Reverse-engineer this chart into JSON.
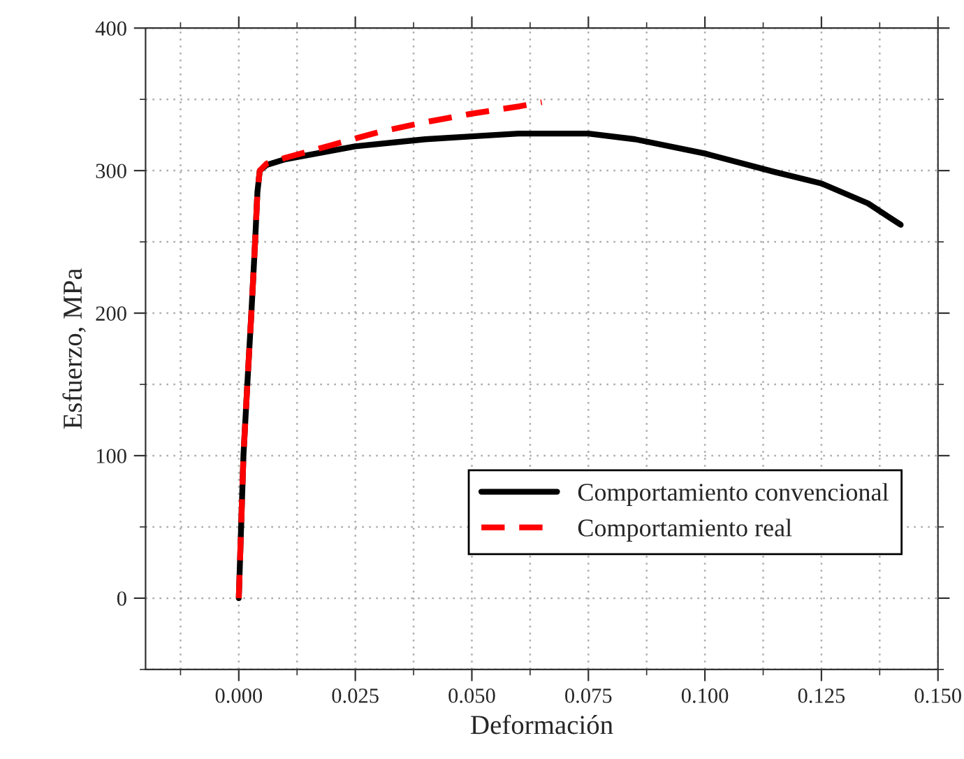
{
  "chart_data": {
    "type": "line",
    "xlabel": "Deformación",
    "ylabel": "Esfuerzo, MPa",
    "xlim": [
      -0.02,
      0.15
    ],
    "xticks": [
      {
        "value": 0,
        "label": "0.000"
      },
      {
        "value": 0.025,
        "label": "0.025"
      },
      {
        "value": 0.05,
        "label": "0.050"
      },
      {
        "value": 0.075,
        "label": "0.075"
      },
      {
        "value": 0.1,
        "label": "0.100"
      },
      {
        "value": 0.125,
        "label": "0.125"
      },
      {
        "value": 0.15,
        "label": "0.150"
      }
    ],
    "ylim": [
      -50,
      400
    ],
    "yticks": [
      0,
      100,
      200,
      300,
      400
    ],
    "grid": true,
    "legend": "lower right",
    "series": [
      {
        "name": "Comportamiento convencional",
        "color": "#000000",
        "line_style": "solid",
        "x": [
          0,
          0.0005,
          0.001,
          0.002,
          0.0027,
          0.0035,
          0.004,
          0.0045,
          0.006,
          0.01,
          0.025,
          0.04,
          0.05,
          0.06,
          0.07,
          0.075,
          0.085,
          0.1,
          0.115,
          0.125,
          0.135,
          0.142
        ],
        "values": [
          0,
          50,
          100,
          160,
          200,
          250,
          285,
          300,
          304,
          308,
          317,
          322,
          324,
          326,
          326,
          326,
          322,
          312,
          299,
          291,
          277,
          262
        ]
      },
      {
        "name": "Comportamiento real",
        "color": "#ff0000",
        "line_style": "dashed",
        "x": [
          0,
          0.0005,
          0.001,
          0.002,
          0.0027,
          0.0035,
          0.004,
          0.0045,
          0.006,
          0.01,
          0.02,
          0.03,
          0.04,
          0.05,
          0.06,
          0.065
        ],
        "values": [
          0,
          50,
          100,
          160,
          200,
          250,
          285,
          300,
          305,
          309,
          318,
          327,
          334,
          340,
          345,
          348
        ]
      }
    ]
  }
}
